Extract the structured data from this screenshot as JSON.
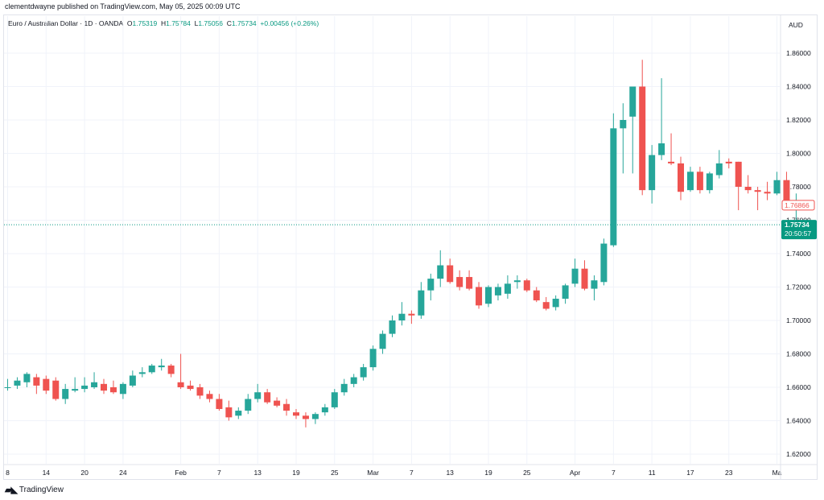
{
  "header": {
    "publisher": "clementdwayne published on TradingView.com, May 05, 2025 00:09 UTC",
    "symbol": "Euro / Australian Dollar · 1D · OANDA",
    "o_label": "O",
    "o_value": "1.75319",
    "h_label": "H",
    "h_value": "1.75784",
    "l_label": "L",
    "l_value": "1.75056",
    "c_label": "C",
    "c_value": "1.75734",
    "change": "+0.00456 (+0.26%)"
  },
  "footer": {
    "brand": "TradingView",
    "logo_icon": "tradingview-logo-icon"
  },
  "colors": {
    "up": "#26a69a",
    "down": "#ef5350",
    "grid": "#f0f3fa",
    "axis_text": "#131722",
    "price_label": "#089981"
  },
  "chart_data": {
    "type": "candlestick",
    "currency": "AUD",
    "ylim": [
      1.61,
      1.87
    ],
    "y_ticks": [
      1.62,
      1.64,
      1.66,
      1.68,
      1.7,
      1.72,
      1.74,
      1.76,
      1.78,
      1.8,
      1.82,
      1.84,
      1.86
    ],
    "y_tick_labels": [
      "1.62000",
      "1.64000",
      "1.66000",
      "1.68000",
      "1.70000",
      "1.72000",
      "1.74000",
      "1.76000",
      "1.78000",
      "1.80000",
      "1.82000",
      "1.84000",
      "1.86000"
    ],
    "x_ticks": [
      {
        "label": "8",
        "index": 0
      },
      {
        "label": "14",
        "index": 4
      },
      {
        "label": "20",
        "index": 8
      },
      {
        "label": "24",
        "index": 12
      },
      {
        "label": "Feb",
        "index": 18
      },
      {
        "label": "7",
        "index": 22
      },
      {
        "label": "13",
        "index": 26
      },
      {
        "label": "19",
        "index": 30
      },
      {
        "label": "25",
        "index": 34
      },
      {
        "label": "Mar",
        "index": 38
      },
      {
        "label": "7",
        "index": 42
      },
      {
        "label": "13",
        "index": 46
      },
      {
        "label": "19",
        "index": 50
      },
      {
        "label": "25",
        "index": 54
      },
      {
        "label": "Apr",
        "index": 59
      },
      {
        "label": "7",
        "index": 63
      },
      {
        "label": "11",
        "index": 67
      },
      {
        "label": "17",
        "index": 71
      },
      {
        "label": "23",
        "index": 75
      },
      {
        "label": "Ma",
        "index": 80
      }
    ],
    "candles": [
      {
        "o": 1.66,
        "h": 1.665,
        "l": 1.658,
        "c": 1.66
      },
      {
        "o": 1.661,
        "h": 1.666,
        "l": 1.659,
        "c": 1.664
      },
      {
        "o": 1.663,
        "h": 1.669,
        "l": 1.66,
        "c": 1.668
      },
      {
        "o": 1.666,
        "h": 1.668,
        "l": 1.656,
        "c": 1.661
      },
      {
        "o": 1.665,
        "h": 1.667,
        "l": 1.656,
        "c": 1.658
      },
      {
        "o": 1.664,
        "h": 1.666,
        "l": 1.652,
        "c": 1.653
      },
      {
        "o": 1.653,
        "h": 1.662,
        "l": 1.65,
        "c": 1.659
      },
      {
        "o": 1.658,
        "h": 1.666,
        "l": 1.657,
        "c": 1.659
      },
      {
        "o": 1.659,
        "h": 1.666,
        "l": 1.657,
        "c": 1.661
      },
      {
        "o": 1.66,
        "h": 1.669,
        "l": 1.659,
        "c": 1.663
      },
      {
        "o": 1.662,
        "h": 1.665,
        "l": 1.656,
        "c": 1.658
      },
      {
        "o": 1.66,
        "h": 1.664,
        "l": 1.656,
        "c": 1.657
      },
      {
        "o": 1.656,
        "h": 1.663,
        "l": 1.653,
        "c": 1.662
      },
      {
        "o": 1.661,
        "h": 1.67,
        "l": 1.66,
        "c": 1.667
      },
      {
        "o": 1.668,
        "h": 1.672,
        "l": 1.666,
        "c": 1.669
      },
      {
        "o": 1.669,
        "h": 1.674,
        "l": 1.668,
        "c": 1.673
      },
      {
        "o": 1.672,
        "h": 1.677,
        "l": 1.67,
        "c": 1.673
      },
      {
        "o": 1.673,
        "h": 1.674,
        "l": 1.666,
        "c": 1.668
      },
      {
        "o": 1.663,
        "h": 1.68,
        "l": 1.659,
        "c": 1.66
      },
      {
        "o": 1.661,
        "h": 1.664,
        "l": 1.658,
        "c": 1.659
      },
      {
        "o": 1.66,
        "h": 1.662,
        "l": 1.653,
        "c": 1.655
      },
      {
        "o": 1.656,
        "h": 1.658,
        "l": 1.651,
        "c": 1.653
      },
      {
        "o": 1.653,
        "h": 1.656,
        "l": 1.646,
        "c": 1.647
      },
      {
        "o": 1.648,
        "h": 1.652,
        "l": 1.64,
        "c": 1.642
      },
      {
        "o": 1.643,
        "h": 1.648,
        "l": 1.641,
        "c": 1.646
      },
      {
        "o": 1.646,
        "h": 1.656,
        "l": 1.644,
        "c": 1.653
      },
      {
        "o": 1.653,
        "h": 1.662,
        "l": 1.651,
        "c": 1.657
      },
      {
        "o": 1.657,
        "h": 1.659,
        "l": 1.65,
        "c": 1.651
      },
      {
        "o": 1.652,
        "h": 1.654,
        "l": 1.648,
        "c": 1.649
      },
      {
        "o": 1.65,
        "h": 1.653,
        "l": 1.643,
        "c": 1.646
      },
      {
        "o": 1.645,
        "h": 1.647,
        "l": 1.641,
        "c": 1.643
      },
      {
        "o": 1.643,
        "h": 1.645,
        "l": 1.636,
        "c": 1.641
      },
      {
        "o": 1.641,
        "h": 1.645,
        "l": 1.638,
        "c": 1.644
      },
      {
        "o": 1.645,
        "h": 1.65,
        "l": 1.643,
        "c": 1.648
      },
      {
        "o": 1.648,
        "h": 1.659,
        "l": 1.647,
        "c": 1.657
      },
      {
        "o": 1.657,
        "h": 1.665,
        "l": 1.655,
        "c": 1.662
      },
      {
        "o": 1.662,
        "h": 1.668,
        "l": 1.66,
        "c": 1.666
      },
      {
        "o": 1.666,
        "h": 1.674,
        "l": 1.664,
        "c": 1.672
      },
      {
        "o": 1.672,
        "h": 1.685,
        "l": 1.67,
        "c": 1.683
      },
      {
        "o": 1.683,
        "h": 1.694,
        "l": 1.68,
        "c": 1.692
      },
      {
        "o": 1.692,
        "h": 1.703,
        "l": 1.69,
        "c": 1.7
      },
      {
        "o": 1.7,
        "h": 1.711,
        "l": 1.697,
        "c": 1.704
      },
      {
        "o": 1.704,
        "h": 1.706,
        "l": 1.698,
        "c": 1.703
      },
      {
        "o": 1.703,
        "h": 1.723,
        "l": 1.701,
        "c": 1.718
      },
      {
        "o": 1.718,
        "h": 1.728,
        "l": 1.712,
        "c": 1.725
      },
      {
        "o": 1.725,
        "h": 1.742,
        "l": 1.72,
        "c": 1.733
      },
      {
        "o": 1.733,
        "h": 1.737,
        "l": 1.722,
        "c": 1.723
      },
      {
        "o": 1.726,
        "h": 1.73,
        "l": 1.718,
        "c": 1.72
      },
      {
        "o": 1.726,
        "h": 1.73,
        "l": 1.718,
        "c": 1.719
      },
      {
        "o": 1.72,
        "h": 1.723,
        "l": 1.707,
        "c": 1.709
      },
      {
        "o": 1.71,
        "h": 1.721,
        "l": 1.708,
        "c": 1.72
      },
      {
        "o": 1.715,
        "h": 1.722,
        "l": 1.712,
        "c": 1.72
      },
      {
        "o": 1.716,
        "h": 1.727,
        "l": 1.713,
        "c": 1.722
      },
      {
        "o": 1.723,
        "h": 1.727,
        "l": 1.719,
        "c": 1.724
      },
      {
        "o": 1.724,
        "h": 1.725,
        "l": 1.717,
        "c": 1.718
      },
      {
        "o": 1.718,
        "h": 1.72,
        "l": 1.711,
        "c": 1.712
      },
      {
        "o": 1.711,
        "h": 1.714,
        "l": 1.706,
        "c": 1.707
      },
      {
        "o": 1.708,
        "h": 1.715,
        "l": 1.706,
        "c": 1.713
      },
      {
        "o": 1.713,
        "h": 1.722,
        "l": 1.71,
        "c": 1.721
      },
      {
        "o": 1.722,
        "h": 1.737,
        "l": 1.72,
        "c": 1.731
      },
      {
        "o": 1.731,
        "h": 1.736,
        "l": 1.718,
        "c": 1.719
      },
      {
        "o": 1.719,
        "h": 1.727,
        "l": 1.712,
        "c": 1.724
      },
      {
        "o": 1.723,
        "h": 1.749,
        "l": 1.721,
        "c": 1.746
      },
      {
        "o": 1.745,
        "h": 1.824,
        "l": 1.744,
        "c": 1.815
      },
      {
        "o": 1.815,
        "h": 1.83,
        "l": 1.788,
        "c": 1.82
      },
      {
        "o": 1.822,
        "h": 1.84,
        "l": 1.788,
        "c": 1.84
      },
      {
        "o": 1.84,
        "h": 1.856,
        "l": 1.775,
        "c": 1.778
      },
      {
        "o": 1.778,
        "h": 1.805,
        "l": 1.77,
        "c": 1.799
      },
      {
        "o": 1.799,
        "h": 1.845,
        "l": 1.796,
        "c": 1.806
      },
      {
        "o": 1.795,
        "h": 1.812,
        "l": 1.793,
        "c": 1.794
      },
      {
        "o": 1.794,
        "h": 1.798,
        "l": 1.772,
        "c": 1.777
      },
      {
        "o": 1.778,
        "h": 1.792,
        "l": 1.777,
        "c": 1.789
      },
      {
        "o": 1.789,
        "h": 1.792,
        "l": 1.776,
        "c": 1.778
      },
      {
        "o": 1.778,
        "h": 1.789,
        "l": 1.776,
        "c": 1.788
      },
      {
        "o": 1.787,
        "h": 1.802,
        "l": 1.785,
        "c": 1.794
      },
      {
        "o": 1.795,
        "h": 1.797,
        "l": 1.791,
        "c": 1.794
      },
      {
        "o": 1.795,
        "h": 1.795,
        "l": 1.766,
        "c": 1.78
      },
      {
        "o": 1.78,
        "h": 1.787,
        "l": 1.776,
        "c": 1.778
      },
      {
        "o": 1.778,
        "h": 1.78,
        "l": 1.766,
        "c": 1.777
      },
      {
        "o": 1.777,
        "h": 1.783,
        "l": 1.772,
        "c": 1.776
      },
      {
        "o": 1.776,
        "h": 1.789,
        "l": 1.775,
        "c": 1.784
      },
      {
        "o": 1.784,
        "h": 1.789,
        "l": 1.768,
        "c": 1.769
      },
      {
        "o": 1.769,
        "h": 1.776,
        "l": 1.76,
        "c": 1.769
      }
    ],
    "last_close_label": "1.76866",
    "current_price": 1.7573,
    "current_price_label": "1.75734",
    "countdown": "20:50:57"
  }
}
